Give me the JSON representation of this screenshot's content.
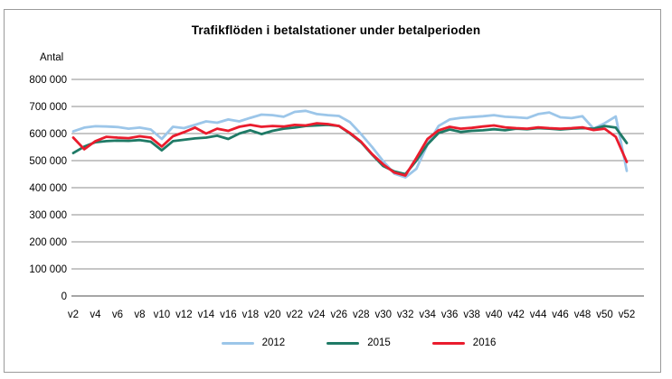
{
  "title": "Trafikflöden i betalstationer under betalperioden",
  "y_axis_title": "Antal",
  "chart_data": {
    "type": "line",
    "x_unit": "week",
    "x_first_week": 2,
    "x_last_week": 52,
    "x_tick_labels": [
      "v2",
      "v4",
      "v6",
      "v8",
      "v10",
      "v12",
      "v14",
      "v16",
      "v18",
      "v20",
      "v22",
      "v24",
      "v26",
      "v28",
      "v30",
      "v32",
      "v34",
      "v36",
      "v38",
      "v40",
      "v42",
      "v44",
      "v46",
      "v48",
      "v50",
      "v52"
    ],
    "ylim": [
      0,
      800000
    ],
    "y_tick_step": 100000,
    "y_tick_labels": [
      "800 000",
      "700 000",
      "600 000",
      "500 000",
      "400 000",
      "300 000",
      "200 000",
      "100 000",
      "0"
    ],
    "grid": "horizontal",
    "legend_position": "bottom",
    "gridline_color": "#8c8c8c",
    "axis_color": "#4d4d4d",
    "series": [
      {
        "name": "2012",
        "color": "#9cc6e9",
        "values": [
          608000,
          622000,
          627000,
          626000,
          624000,
          618000,
          622000,
          615000,
          580000,
          625000,
          620000,
          632000,
          645000,
          640000,
          652000,
          645000,
          658000,
          670000,
          668000,
          662000,
          680000,
          684000,
          672000,
          668000,
          665000,
          642000,
          598000,
          550000,
          498000,
          452000,
          438000,
          470000,
          560000,
          628000,
          652000,
          658000,
          661000,
          664000,
          668000,
          662000,
          660000,
          657000,
          672000,
          678000,
          660000,
          657000,
          664000,
          618000,
          638000,
          663000,
          462000
        ]
      },
      {
        "name": "2015",
        "color": "#1f7a66",
        "values": [
          528000,
          552000,
          568000,
          572000,
          574000,
          573000,
          576000,
          570000,
          538000,
          572000,
          577000,
          582000,
          585000,
          592000,
          580000,
          600000,
          612000,
          598000,
          610000,
          618000,
          622000,
          628000,
          630000,
          632000,
          628000,
          600000,
          568000,
          522000,
          480000,
          460000,
          450000,
          500000,
          560000,
          602000,
          615000,
          606000,
          610000,
          612000,
          616000,
          612000,
          618000,
          616000,
          620000,
          618000,
          615000,
          618000,
          620000,
          618000,
          628000,
          622000,
          565000
        ]
      },
      {
        "name": "2016",
        "color": "#ea1c2d",
        "values": [
          585000,
          542000,
          572000,
          588000,
          585000,
          583000,
          590000,
          585000,
          552000,
          590000,
          605000,
          622000,
          600000,
          618000,
          610000,
          625000,
          632000,
          625000,
          628000,
          626000,
          632000,
          630000,
          638000,
          635000,
          628000,
          602000,
          570000,
          524000,
          486000,
          456000,
          445000,
          510000,
          580000,
          612000,
          625000,
          618000,
          621000,
          626000,
          630000,
          623000,
          620000,
          618000,
          623000,
          620000,
          618000,
          620000,
          623000,
          613000,
          618000,
          588000,
          495000
        ]
      }
    ]
  }
}
